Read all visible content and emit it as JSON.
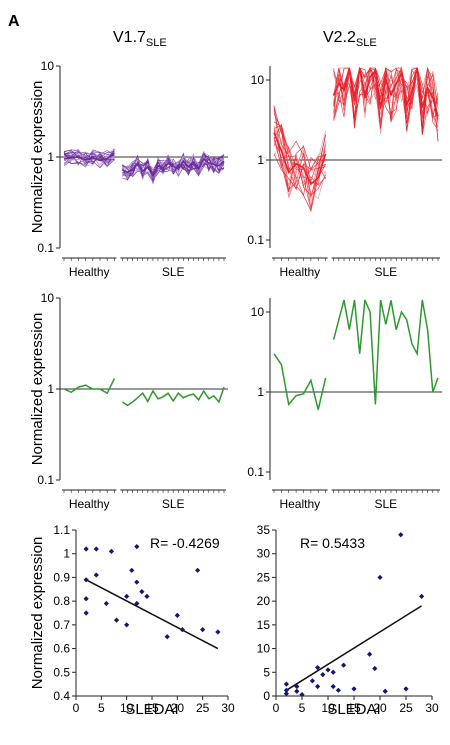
{
  "figure": {
    "panel_label": "A",
    "columns": [
      {
        "title": "V1.7",
        "subscript": "SLE"
      },
      {
        "title": "V2.2",
        "subscript": "SLE"
      }
    ],
    "colors": {
      "purple": "#6a2c9a",
      "purple_light": "#b496d4",
      "red": "#e8202a",
      "red_light": "#f08a8e",
      "green": "#2e9a2e",
      "scatter_point": "#15157a",
      "axis": "#222222",
      "reference_line": "#333333"
    }
  },
  "chart_data": [
    {
      "id": "r1c1",
      "type": "line",
      "scale": "log",
      "ylabel": "Normalized expression",
      "ylim": [
        0.1,
        10
      ],
      "yticks": [
        "10",
        "1",
        "0.1"
      ],
      "groups": [
        "Healthy",
        "SLE"
      ],
      "n_healthy": 8,
      "n_sle": 21,
      "reference_line": 1,
      "series_count": 22,
      "color": "purple",
      "mean": {
        "healthy": [
          0.95,
          0.98,
          1.0,
          0.93,
          0.98,
          0.92,
          0.96,
          1.1
        ],
        "sle": [
          0.72,
          0.68,
          0.73,
          0.85,
          0.7,
          0.78,
          0.62,
          0.8,
          0.76,
          0.85,
          0.79,
          0.74,
          0.9,
          0.78,
          0.88,
          0.74,
          0.95,
          0.86,
          0.83,
          0.8,
          0.9
        ]
      }
    },
    {
      "id": "r1c2",
      "type": "line",
      "scale": "log",
      "ylabel": "",
      "ylim": [
        0.02,
        80
      ],
      "yticks": [
        "10",
        "1",
        "0.1"
      ],
      "groups": [
        "Healthy",
        "SLE"
      ],
      "n_healthy": 8,
      "n_sle": 21,
      "reference_line": 1,
      "series_count": 18,
      "color": "red",
      "mean": {
        "healthy": [
          2.2,
          1.3,
          0.7,
          0.9,
          0.8,
          0.5,
          0.6,
          1.2
        ],
        "sle": [
          6.5,
          9.0,
          7.5,
          18.0,
          5.5,
          14.0,
          6.0,
          11.0,
          13.0,
          4.5,
          10.0,
          6.5,
          9.0,
          12.0,
          5.0,
          7.0,
          17.0,
          4.5,
          8.0,
          6.0,
          3.5
        ]
      }
    },
    {
      "id": "r2c1",
      "type": "line",
      "scale": "log",
      "ylabel": "Normalized expression",
      "ylim": [
        0.1,
        10
      ],
      "yticks": [
        "10",
        "1",
        "0.1"
      ],
      "groups": [
        "Healthy",
        "SLE"
      ],
      "n_healthy": 8,
      "n_sle": 21,
      "reference_line": 1,
      "color": "green",
      "values": {
        "healthy": [
          1.0,
          0.92,
          1.05,
          1.1,
          1.0,
          1.0,
          0.9,
          1.3
        ],
        "sle": [
          0.72,
          0.66,
          0.72,
          0.8,
          0.9,
          0.73,
          0.95,
          0.78,
          0.82,
          0.9,
          0.74,
          0.9,
          0.8,
          0.85,
          0.88,
          0.76,
          0.95,
          0.78,
          0.84,
          0.72,
          1.05
        ]
      }
    },
    {
      "id": "r2c2",
      "type": "line",
      "scale": "log",
      "ylabel": "",
      "ylim": [
        0.02,
        80
      ],
      "yticks": [
        "10",
        "1",
        "0.1"
      ],
      "groups": [
        "Healthy",
        "SLE"
      ],
      "n_healthy": 8,
      "n_sle": 21,
      "reference_line": 1,
      "color": "green",
      "values": {
        "healthy": [
          3.0,
          2.2,
          0.7,
          0.9,
          0.95,
          1.4,
          0.6,
          1.5
        ],
        "sle": [
          4.5,
          8.0,
          38.0,
          6.0,
          18.0,
          3.0,
          25.0,
          10.0,
          0.7,
          20.0,
          7.0,
          14.0,
          6.0,
          10.0,
          8.0,
          4.0,
          3.0,
          28.0,
          6.0,
          1.0,
          1.5
        ]
      }
    },
    {
      "id": "r3c1",
      "type": "scatter",
      "xlabel": "SLEDAI",
      "ylabel": "Normalized expression",
      "xlim": [
        0,
        30
      ],
      "ylim": [
        0.4,
        1.1
      ],
      "xticks": [
        0,
        5,
        10,
        15,
        20,
        25,
        30
      ],
      "yticks": [
        0.4,
        0.5,
        0.6,
        0.7,
        0.8,
        0.9,
        1.0,
        1.1
      ],
      "annotation": "R= -0.4269",
      "points": [
        {
          "x": 2,
          "y": 1.02
        },
        {
          "x": 2,
          "y": 0.89
        },
        {
          "x": 2,
          "y": 0.81
        },
        {
          "x": 2,
          "y": 0.75
        },
        {
          "x": 4,
          "y": 1.02
        },
        {
          "x": 4,
          "y": 0.91
        },
        {
          "x": 6,
          "y": 0.79
        },
        {
          "x": 7,
          "y": 1.01
        },
        {
          "x": 8,
          "y": 0.72
        },
        {
          "x": 10,
          "y": 0.82
        },
        {
          "x": 10,
          "y": 0.7
        },
        {
          "x": 11,
          "y": 0.93
        },
        {
          "x": 12,
          "y": 1.03
        },
        {
          "x": 12,
          "y": 0.88
        },
        {
          "x": 12,
          "y": 0.79
        },
        {
          "x": 13,
          "y": 0.84
        },
        {
          "x": 14,
          "y": 0.82
        },
        {
          "x": 18,
          "y": 0.65
        },
        {
          "x": 20,
          "y": 0.74
        },
        {
          "x": 21,
          "y": 0.68
        },
        {
          "x": 24,
          "y": 0.93
        },
        {
          "x": 25,
          "y": 0.68
        },
        {
          "x": 28,
          "y": 0.67
        }
      ],
      "trendline": {
        "x": [
          2,
          28
        ],
        "y": [
          0.89,
          0.6
        ]
      }
    },
    {
      "id": "r3c2",
      "type": "scatter",
      "xlabel": "SLEDAI",
      "ylabel": "",
      "xlim": [
        0,
        30
      ],
      "ylim": [
        0,
        35
      ],
      "xticks": [
        0,
        5,
        10,
        15,
        20,
        25,
        30
      ],
      "yticks": [
        0,
        5,
        10,
        15,
        20,
        25,
        30,
        35
      ],
      "annotation": "R= 0.5433",
      "points": [
        {
          "x": 2,
          "y": 2.5
        },
        {
          "x": 2,
          "y": 1.2
        },
        {
          "x": 2,
          "y": 0.5
        },
        {
          "x": 4,
          "y": 2.0
        },
        {
          "x": 4,
          "y": 1.0
        },
        {
          "x": 5,
          "y": 0.3
        },
        {
          "x": 7,
          "y": 3.2
        },
        {
          "x": 8,
          "y": 6.0
        },
        {
          "x": 8,
          "y": 2.0
        },
        {
          "x": 9,
          "y": 4.5
        },
        {
          "x": 10,
          "y": 5.5
        },
        {
          "x": 11,
          "y": 5.0
        },
        {
          "x": 11,
          "y": 2.0
        },
        {
          "x": 12,
          "y": 1.2
        },
        {
          "x": 13,
          "y": 6.5
        },
        {
          "x": 15,
          "y": 1.5
        },
        {
          "x": 18,
          "y": 8.8
        },
        {
          "x": 19,
          "y": 5.8
        },
        {
          "x": 20,
          "y": 25.0
        },
        {
          "x": 21,
          "y": 1.0
        },
        {
          "x": 24,
          "y": 34.0
        },
        {
          "x": 25,
          "y": 1.5
        },
        {
          "x": 28,
          "y": 21.0
        }
      ],
      "trendline": {
        "x": [
          2,
          28
        ],
        "y": [
          1.2,
          19.0
        ]
      }
    }
  ]
}
